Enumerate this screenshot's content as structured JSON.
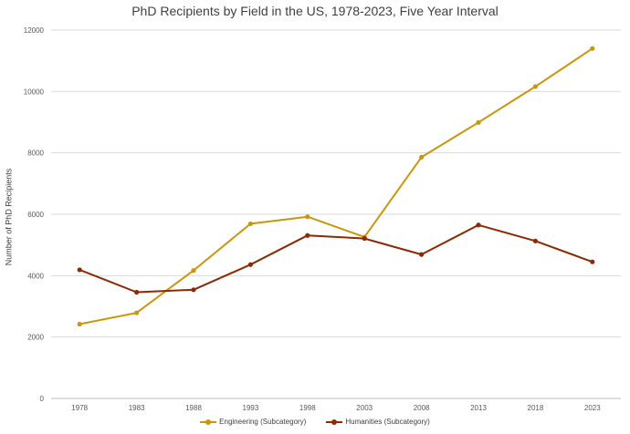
{
  "chart_data": {
    "type": "line",
    "title": "PhD Recipients by Field in the US, 1978-2023, Five Year Interval",
    "xlabel": "",
    "ylabel": "Number of PhD Recipients",
    "categories": [
      "1978",
      "1983",
      "1988",
      "1993",
      "1998",
      "2003",
      "2008",
      "2013",
      "2018",
      "2023"
    ],
    "ylim": [
      0,
      12000
    ],
    "yticks": [
      0,
      2000,
      4000,
      6000,
      8000,
      10000,
      12000
    ],
    "grid": true,
    "legend_position": "bottom",
    "series": [
      {
        "name": "Engineering (Subcategory)",
        "color": "#C9960E",
        "values": [
          2420,
          2790,
          4170,
          5690,
          5920,
          5260,
          7860,
          8990,
          10160,
          11400
        ]
      },
      {
        "name": "Humanities (Subcategory)",
        "color": "#8B2A05",
        "values": [
          4190,
          3460,
          3540,
          4360,
          5310,
          5210,
          4690,
          5650,
          5130,
          4450
        ]
      }
    ]
  }
}
